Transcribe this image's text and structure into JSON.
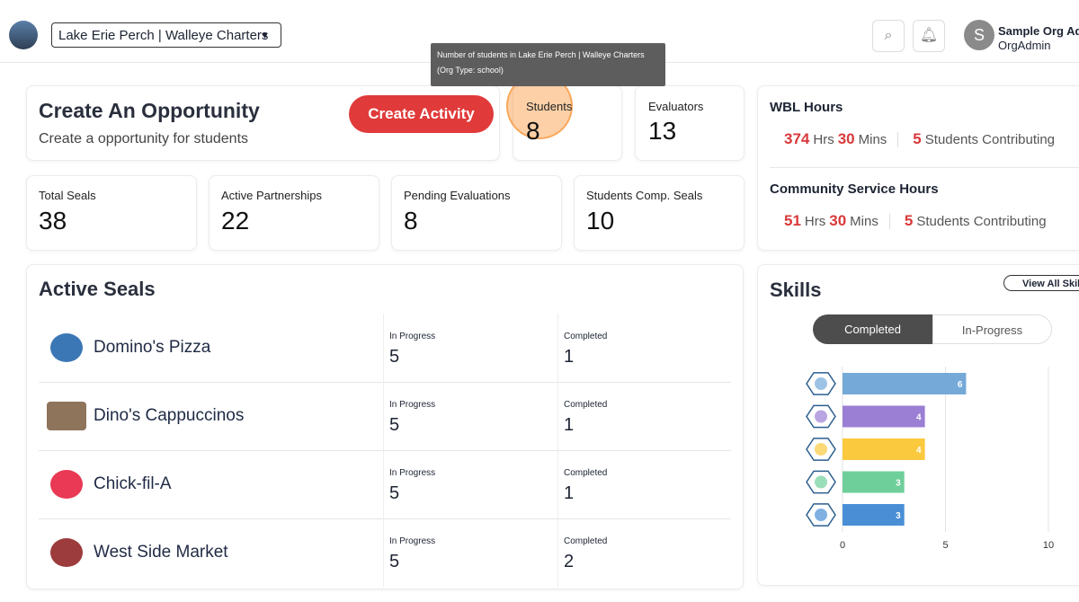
{
  "header": {
    "org_selector": "Lake Erie Perch | Walleye Charters",
    "user": {
      "initial": "S",
      "name": "Sample Org Admin",
      "role": "OrgAdmin"
    }
  },
  "tooltip": "Number of students in Lake Erie Perch | Walleye Charters (Org Type: school)",
  "opportunity": {
    "title": "Create An Opportunity",
    "subtitle": "Create a opportunity for students",
    "button": "Create Activity"
  },
  "counts": [
    {
      "label": "Students",
      "value": 8
    },
    {
      "label": "Evaluators",
      "value": 13
    }
  ],
  "stats": [
    {
      "label": "Total Seals",
      "value": 38
    },
    {
      "label": "Active Partnerships",
      "value": 22
    },
    {
      "label": "Pending Evaluations",
      "value": 8
    },
    {
      "label": "Students Comp. Seals",
      "value": 10
    }
  ],
  "hours_units": {
    "hours": "Hrs",
    "mins": "Mins",
    "students": "Students Contributing"
  },
  "hours": [
    {
      "title": "WBL Hours",
      "hours": 374,
      "mins": 30,
      "students": 5
    },
    {
      "title": "Community Service Hours",
      "hours": 51,
      "mins": 30,
      "students": 5
    }
  ],
  "active_seals": {
    "title": "Active Seals",
    "in_progress_label": "In Progress",
    "completed_label": "Completed",
    "rows": [
      {
        "name": "Domino's Pizza",
        "in_progress": 5,
        "completed": 1
      },
      {
        "name": "Dino's Cappuccinos",
        "in_progress": 5,
        "completed": 1
      },
      {
        "name": "Chick-fil-A",
        "in_progress": 5,
        "completed": 1
      },
      {
        "name": "West Side Market",
        "in_progress": 5,
        "completed": 2
      }
    ]
  },
  "skills": {
    "title": "Skills",
    "view_all": "View All Skills",
    "tabs": [
      "Completed",
      "In-Progress"
    ],
    "chart": {
      "type": "bar",
      "orientation": "horizontal",
      "values": [
        6,
        4,
        4,
        3,
        3
      ],
      "colors": [
        "#74a9d8",
        "#9b7fd4",
        "#fbc93d",
        "#6fcf9b",
        "#4a8fd6"
      ],
      "xlim": [
        0,
        10
      ],
      "xticks": [
        0,
        5,
        10
      ],
      "grid": true
    }
  }
}
